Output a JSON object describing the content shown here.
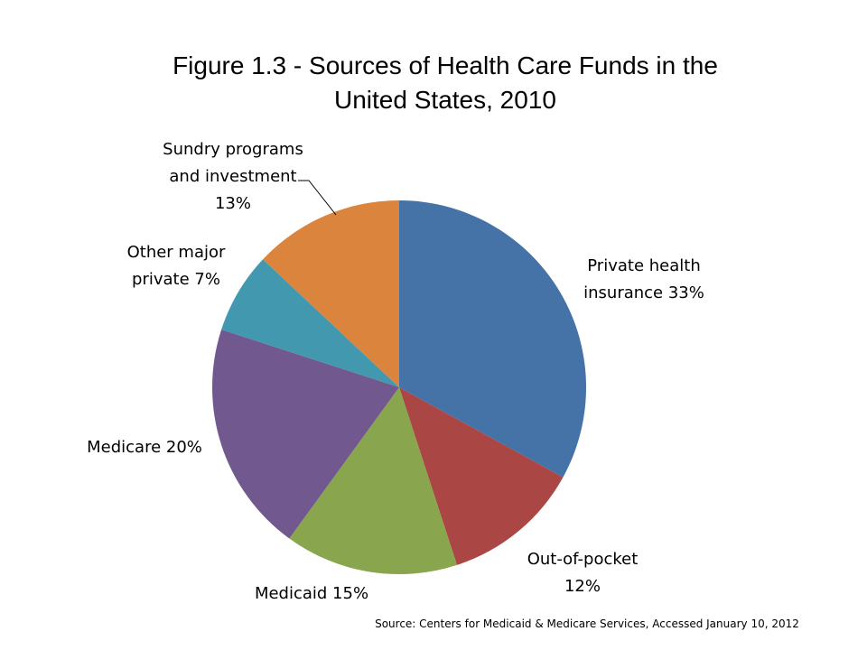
{
  "chart_data": {
    "type": "pie",
    "title": [
      "Figure 1.3 - Sources of Health Care Funds in the",
      "United States, 2010"
    ],
    "slices": [
      {
        "label": [
          "Private health",
          "insurance 33%"
        ],
        "value": 33,
        "color": "#4572A7"
      },
      {
        "label": [
          "Out-of-pocket",
          "12%"
        ],
        "value": 12,
        "color": "#AA4643"
      },
      {
        "label": [
          "Medicaid 15%"
        ],
        "value": 15,
        "color": "#89A54E"
      },
      {
        "label": [
          "Medicare 20%"
        ],
        "value": 20,
        "color": "#71588F"
      },
      {
        "label": [
          "Other major",
          "private 7%"
        ],
        "value": 7,
        "color": "#4198AF"
      },
      {
        "label": [
          "Sundry programs",
          "and investment",
          "13%"
        ],
        "value": 13,
        "color": "#DB843D"
      }
    ]
  },
  "source": "Source: Centers for Medicaid & Medicare Services, Accessed January 10, 2012"
}
